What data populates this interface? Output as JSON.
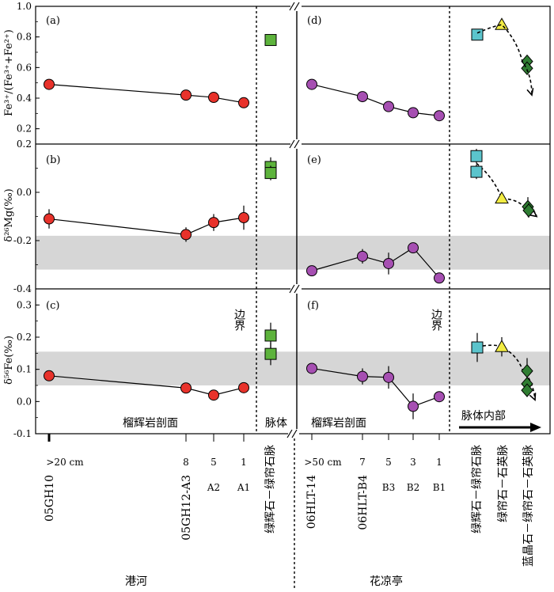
{
  "chart_data": [
    {
      "panel": "a",
      "type": "scatter",
      "label": "(a)",
      "ylabel": "Fe³⁺/(Fe³⁺+Fe²⁺)",
      "ylim": [
        0.1,
        1.0
      ],
      "yticks": [
        "0.2",
        "0.4",
        "0.6",
        "0.8",
        "1.0"
      ],
      "series": [
        {
          "group": "港河",
          "x": [
            ">20 cm",
            "8",
            "5",
            "1"
          ],
          "values": [
            0.49,
            0.42,
            0.405,
            0.37
          ],
          "color": "#e8322b",
          "marker": "circle",
          "connected": true
        },
        {
          "group": "港河脉体",
          "x": [
            "绿辉石－绿帘石脉"
          ],
          "values": [
            0.78
          ],
          "color": "#5db33c",
          "marker": "square",
          "connected": false
        },
        {
          "group": "花凉亭",
          "x": [
            ">50 cm",
            "7",
            "5",
            "3",
            "1"
          ],
          "values": [
            0.49,
            0.41,
            0.345,
            0.305,
            0.285
          ],
          "color": "#a64fb2",
          "marker": "circle",
          "connected": true
        },
        {
          "group": "花凉亭脉体",
          "x": [
            "绿辉石－绿帘石脉",
            "绿帘石－石英脉",
            "蓝晶石－绿帘石－石英脉",
            "蓝晶石－绿帘石－石英脉"
          ],
          "values": [
            0.815,
            0.88,
            0.64,
            0.595
          ],
          "colors": [
            "#5bc4cc",
            "#f2ec43",
            "#2f7d32",
            "#2f7d32"
          ],
          "markers": [
            "square",
            "triangle",
            "diamond",
            "diamond"
          ],
          "trend": "dashed-arrow"
        }
      ]
    },
    {
      "panel": "b",
      "type": "scatter",
      "label": "(b)",
      "ylabel": "δ²⁶Mg(‰)",
      "ylim": [
        -0.4,
        0.2
      ],
      "yticks": [
        "0.2",
        "0.0",
        "-0.2",
        "-0.4"
      ],
      "band": [
        -0.32,
        -0.18
      ],
      "series": [
        {
          "group": "港河",
          "x": [
            ">20 cm",
            "8",
            "5",
            "1"
          ],
          "values": [
            -0.11,
            -0.175,
            -0.125,
            -0.105
          ],
          "err": [
            0.04,
            0.03,
            0.035,
            0.05
          ],
          "color": "#e8322b",
          "marker": "circle",
          "connected": true
        },
        {
          "group": "港河脉体",
          "x": [
            "绿辉石－绿帘石脉",
            "绿辉石－绿帘石脉"
          ],
          "values": [
            0.105,
            0.08
          ],
          "err": [
            0.04,
            0.03
          ],
          "color": "#5db33c",
          "marker": "square",
          "connected": false
        },
        {
          "group": "花凉亭",
          "x": [
            ">50 cm",
            "7",
            "5",
            "3",
            "1"
          ],
          "values": [
            -0.325,
            -0.265,
            -0.295,
            -0.23,
            -0.355
          ],
          "err": [
            0.02,
            0.03,
            0.045,
            0.02,
            0.02
          ],
          "color": "#a64fb2",
          "marker": "circle",
          "connected": true
        },
        {
          "group": "花凉亭脉体",
          "x": [
            "绿辉石－绿帘石脉",
            "绿辉石－绿帘石脉",
            "绿帘石－石英脉",
            "蓝晶石－绿帘石－石英脉",
            "蓝晶石－绿帘石－石英脉"
          ],
          "values": [
            0.15,
            0.085,
            -0.025,
            -0.06,
            -0.075
          ],
          "err": [
            0.03,
            0.03,
            0.015,
            0.04,
            0.03
          ],
          "colors": [
            "#5bc4cc",
            "#5bc4cc",
            "#f2ec43",
            "#2f7d32",
            "#2f7d32"
          ],
          "markers": [
            "square",
            "square",
            "triangle",
            "diamond",
            "diamond"
          ],
          "trend": "dashed-arrow"
        }
      ]
    },
    {
      "panel": "c",
      "type": "scatter",
      "label": "(c)",
      "ylabel": "δ⁵⁶Fe(‰)",
      "ylim": [
        -0.1,
        0.35
      ],
      "yticks": [
        "0.3",
        "0.2",
        "0.1",
        "0.0",
        "-0.1"
      ],
      "band": [
        0.05,
        0.155
      ],
      "annotation": "边界",
      "bottom_labels": [
        "榴辉岩剖面",
        "脉体"
      ],
      "series": [
        {
          "group": "港河",
          "x": [
            ">20 cm",
            "8",
            "5",
            "1"
          ],
          "values": [
            0.08,
            0.042,
            0.02,
            0.043
          ],
          "err": [
            0.01,
            0.01,
            0.01,
            0.01
          ],
          "color": "#e8322b",
          "marker": "circle",
          "connected": true
        },
        {
          "group": "港河脉体",
          "x": [
            "绿辉石－绿帘石脉",
            "绿辉石－绿帘石脉"
          ],
          "values": [
            0.205,
            0.148
          ],
          "err": [
            0.04,
            0.035
          ],
          "color": "#5db33c",
          "marker": "square",
          "connected": false
        }
      ]
    },
    {
      "panel": "f",
      "type": "scatter",
      "label": "(f)",
      "ylim": [
        -0.1,
        0.35
      ],
      "band": [
        0.05,
        0.155
      ],
      "annotation": "边界",
      "bottom_labels": [
        "榴辉岩剖面",
        "脉体内部"
      ],
      "series": [
        {
          "group": "花凉亭",
          "x": [
            ">50 cm",
            "7",
            "5",
            "3",
            "1"
          ],
          "values": [
            0.103,
            0.078,
            0.075,
            -0.015,
            0.015
          ],
          "err": [
            0.015,
            0.025,
            0.035,
            0.04,
            0.01
          ],
          "color": "#a64fb2",
          "marker": "circle",
          "connected": true
        },
        {
          "group": "花凉亭脉体",
          "x": [
            "绿辉石－绿帘石脉",
            "绿帘石－石英脉",
            "蓝晶石－绿帘石－石英脉",
            "蓝晶石－绿帘石－石英脉",
            "蓝晶石－绿帘石－石英脉"
          ],
          "values": [
            0.168,
            0.17,
            0.095,
            0.055,
            0.035
          ],
          "err": [
            0.045,
            0.03,
            0.04,
            0.02,
            0.02
          ],
          "colors": [
            "#5bc4cc",
            "#f2ec43",
            "#2f7d32",
            "#2f7d32",
            "#2f7d32"
          ],
          "markers": [
            "square",
            "triangle",
            "diamond",
            "diamond",
            "diamond"
          ],
          "trend": "dashed-arrow"
        }
      ]
    }
  ],
  "panel_labels": {
    "d": "(d)",
    "e": "(e)"
  },
  "x_axis": {
    "ganghe_ticks": [
      ">20 cm",
      "8",
      "5",
      "1"
    ],
    "ganghe_subticks": {
      "5": "A2",
      "1": "A1"
    },
    "ganghe_samples": [
      "05GH10",
      "05GH12-A3"
    ],
    "ganghe_vein": "绿辉石－绿帘石脉",
    "hualiangting_ticks": [
      ">50 cm",
      "7",
      "5",
      "3",
      "1"
    ],
    "hualiangting_subticks": {
      "5": "B3",
      "3": "B2",
      "1": "B1"
    },
    "hualiangting_samples": [
      "06HLT-14",
      "06HLT-B4"
    ],
    "hualiangting_veins": [
      "绿辉石－绿帘石脉",
      "绿帘石－石英脉",
      "蓝晶石－绿帘石－石英脉"
    ]
  },
  "locations": [
    "港河",
    "花凉亭"
  ]
}
